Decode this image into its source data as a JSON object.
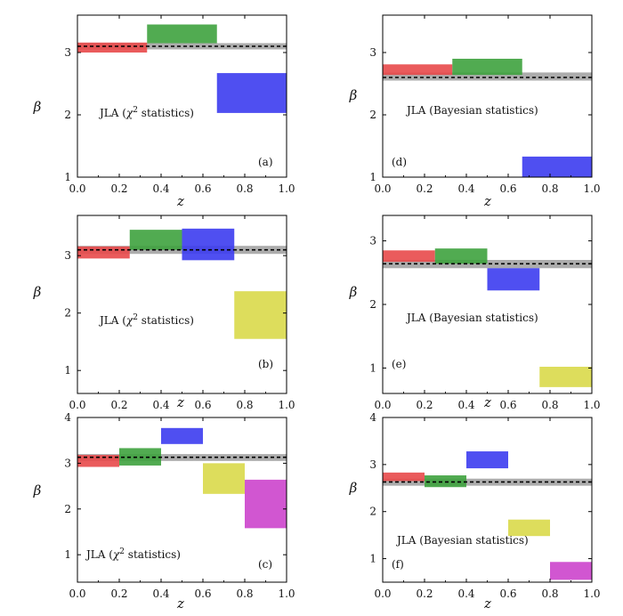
{
  "chart_data": [
    {
      "type": "bar",
      "panel": "(a)",
      "annotation_parts": [
        "JLA (",
        "χ",
        "2",
        " statistics)"
      ],
      "xlabel": "z",
      "ylabel": "β",
      "xlim": [
        0,
        1
      ],
      "ylim": [
        1,
        3.6
      ],
      "xticks": [
        "0.0",
        "0.2",
        "0.4",
        "0.6",
        "0.8",
        "1.0"
      ],
      "yticks": [
        "1",
        "2",
        "3"
      ],
      "ytick_values": [
        1,
        2,
        3
      ],
      "reference_line": {
        "value": 3.1,
        "band": [
          3.05,
          3.15
        ]
      },
      "bins": [
        {
          "z": [
            0.0,
            0.333
          ],
          "beta": [
            3.0,
            3.16
          ],
          "color": "#e8494a"
        },
        {
          "z": [
            0.333,
            0.667
          ],
          "beta": [
            3.15,
            3.45
          ],
          "color": "#3ea23e"
        },
        {
          "z": [
            0.667,
            1.0
          ],
          "beta": [
            2.03,
            2.67
          ],
          "color": "#3c3cf0"
        }
      ]
    },
    {
      "type": "bar",
      "panel": "(d)",
      "annotation_parts": [
        "JLA (Bayesian statistics)"
      ],
      "xlabel": "z",
      "ylabel": "β",
      "xlim": [
        0,
        1
      ],
      "ylim": [
        1,
        3.6
      ],
      "xticks": [
        "0.0",
        "0.2",
        "0.4",
        "0.6",
        "0.8",
        "1.0"
      ],
      "yticks": [
        "1",
        "2",
        "3"
      ],
      "ytick_values": [
        1,
        2,
        3
      ],
      "reference_line": {
        "value": 2.6,
        "band": [
          2.55,
          2.68
        ]
      },
      "bins": [
        {
          "z": [
            0.0,
            0.333
          ],
          "beta": [
            2.64,
            2.81
          ],
          "color": "#e8494a"
        },
        {
          "z": [
            0.333,
            0.667
          ],
          "beta": [
            2.64,
            2.9
          ],
          "color": "#3ea23e"
        },
        {
          "z": [
            0.667,
            1.0
          ],
          "beta": [
            1.0,
            1.33
          ],
          "color": "#3c3cf0"
        }
      ]
    },
    {
      "type": "bar",
      "panel": "(b)",
      "annotation_parts": [
        "JLA (",
        "χ",
        "2",
        " statistics)"
      ],
      "xlabel": "z",
      "ylabel": "β",
      "xlim": [
        0,
        1
      ],
      "ylim": [
        0.6,
        3.7
      ],
      "xticks": [
        "0.0",
        "0.2",
        "0.4",
        "0.6",
        "0.8",
        "1.0"
      ],
      "yticks": [
        "1",
        "2",
        "3"
      ],
      "ytick_values": [
        1,
        2,
        3
      ],
      "reference_line": {
        "value": 3.1,
        "band": [
          3.03,
          3.17
        ]
      },
      "bins": [
        {
          "z": [
            0.0,
            0.25
          ],
          "beta": [
            2.95,
            3.16
          ],
          "color": "#e8494a"
        },
        {
          "z": [
            0.25,
            0.5
          ],
          "beta": [
            3.1,
            3.45
          ],
          "color": "#3ea23e"
        },
        {
          "z": [
            0.5,
            0.75
          ],
          "beta": [
            2.92,
            3.47
          ],
          "color": "#3c3cf0"
        },
        {
          "z": [
            0.75,
            1.0
          ],
          "beta": [
            1.55,
            2.38
          ],
          "color": "#d9d94a"
        }
      ]
    },
    {
      "type": "bar",
      "panel": "(e)",
      "annotation_parts": [
        "JLA (Bayesian statistics)"
      ],
      "xlabel": "z",
      "ylabel": "β",
      "xlim": [
        0,
        1
      ],
      "ylim": [
        0.6,
        3.4
      ],
      "xticks": [
        "0.0",
        "0.2",
        "0.4",
        "0.6",
        "0.8",
        "1.0"
      ],
      "yticks": [
        "1",
        "2",
        "3"
      ],
      "ytick_values": [
        1,
        2,
        3
      ],
      "reference_line": {
        "value": 2.64,
        "band": [
          2.57,
          2.7
        ]
      },
      "bins": [
        {
          "z": [
            0.0,
            0.25
          ],
          "beta": [
            2.67,
            2.85
          ],
          "color": "#e8494a"
        },
        {
          "z": [
            0.25,
            0.5
          ],
          "beta": [
            2.64,
            2.88
          ],
          "color": "#3ea23e"
        },
        {
          "z": [
            0.5,
            0.75
          ],
          "beta": [
            2.22,
            2.57
          ],
          "color": "#3c3cf0"
        },
        {
          "z": [
            0.75,
            1.0
          ],
          "beta": [
            0.7,
            1.02
          ],
          "color": "#d9d94a"
        }
      ]
    },
    {
      "type": "bar",
      "panel": "(c)",
      "annotation_parts": [
        "JLA (",
        "χ",
        "2",
        " statistics)"
      ],
      "xlabel": "z",
      "ylabel": "β",
      "xlim": [
        0,
        1
      ],
      "ylim": [
        0.4,
        4.0
      ],
      "xticks": [
        "0.0",
        "0.2",
        "0.4",
        "0.6",
        "0.8",
        "1.0"
      ],
      "yticks": [
        "1",
        "2",
        "3",
        "4"
      ],
      "ytick_values": [
        1,
        2,
        3,
        4
      ],
      "reference_line": {
        "value": 3.13,
        "band": [
          3.05,
          3.2
        ]
      },
      "bins": [
        {
          "z": [
            0.0,
            0.2
          ],
          "beta": [
            2.92,
            3.18
          ],
          "color": "#e8494a"
        },
        {
          "z": [
            0.2,
            0.4
          ],
          "beta": [
            2.95,
            3.33
          ],
          "color": "#3ea23e"
        },
        {
          "z": [
            0.4,
            0.6
          ],
          "beta": [
            3.42,
            3.77
          ],
          "color": "#3c3cf0"
        },
        {
          "z": [
            0.6,
            0.8
          ],
          "beta": [
            2.33,
            3.0
          ],
          "color": "#d9d94a"
        },
        {
          "z": [
            0.8,
            1.0
          ],
          "beta": [
            1.58,
            2.64
          ],
          "color": "#cc44cc"
        }
      ]
    },
    {
      "type": "bar",
      "panel": "(f)",
      "annotation_parts": [
        "JLA (Bayesian statistics)"
      ],
      "xlabel": "z",
      "ylabel": "β",
      "xlim": [
        0,
        1
      ],
      "ylim": [
        0.5,
        4.0
      ],
      "xticks": [
        "0.0",
        "0.2",
        "0.4",
        "0.6",
        "0.8",
        "1.0"
      ],
      "yticks": [
        "1",
        "2",
        "3",
        "4"
      ],
      "ytick_values": [
        1,
        2,
        3,
        4
      ],
      "reference_line": {
        "value": 2.63,
        "band": [
          2.55,
          2.7
        ]
      },
      "bins": [
        {
          "z": [
            0.0,
            0.2
          ],
          "beta": [
            2.65,
            2.83
          ],
          "color": "#e8494a"
        },
        {
          "z": [
            0.2,
            0.4
          ],
          "beta": [
            2.52,
            2.77
          ],
          "color": "#3ea23e"
        },
        {
          "z": [
            0.4,
            0.6
          ],
          "beta": [
            2.92,
            3.28
          ],
          "color": "#3c3cf0"
        },
        {
          "z": [
            0.6,
            0.8
          ],
          "beta": [
            1.48,
            1.83
          ],
          "color": "#d9d94a"
        },
        {
          "z": [
            0.8,
            1.0
          ],
          "beta": [
            0.55,
            0.93
          ],
          "color": "#cc44cc"
        }
      ]
    }
  ]
}
